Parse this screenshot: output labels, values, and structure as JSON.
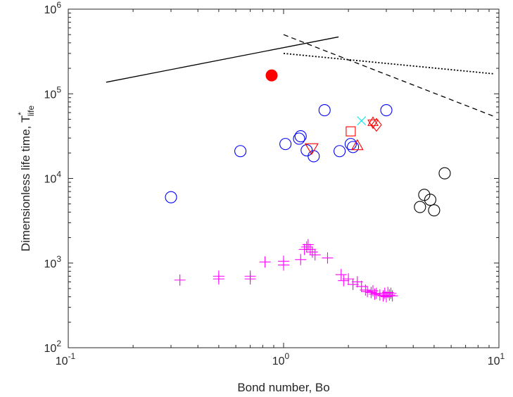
{
  "chart_data": {
    "type": "scatter",
    "title": "",
    "xlabel": "Bond number, Bo",
    "ylabel_main": "Dimensionless life time, T",
    "ylabel_sup": "*",
    "ylabel_sub": "life",
    "xscale": "log",
    "yscale": "log",
    "xlim": [
      0.1,
      10
    ],
    "ylim": [
      100,
      1000000
    ],
    "grid": false,
    "legend": "none",
    "x_ticks": [
      {
        "base": "10",
        "exp": "-1",
        "value": 0.1
      },
      {
        "base": "10",
        "exp": "0",
        "value": 1
      },
      {
        "base": "10",
        "exp": "1",
        "value": 10
      }
    ],
    "y_ticks": [
      {
        "base": "10",
        "exp": "2",
        "value": 100
      },
      {
        "base": "10",
        "exp": "3",
        "value": 1000
      },
      {
        "base": "10",
        "exp": "4",
        "value": 10000
      },
      {
        "base": "10",
        "exp": "5",
        "value": 100000
      },
      {
        "base": "10",
        "exp": "6",
        "value": 1000000
      }
    ],
    "lines": [
      {
        "style": "solid",
        "color": "#000000",
        "x": [
          0.15,
          1.8
        ],
        "y": [
          137000,
          470000
        ]
      },
      {
        "style": "dashed",
        "color": "#000000",
        "x": [
          1.0,
          9.5
        ],
        "y": [
          500000,
          54000
        ]
      },
      {
        "style": "dotted",
        "color": "#000000",
        "x": [
          1.0,
          9.5
        ],
        "y": [
          300000,
          172000
        ]
      }
    ],
    "series": [
      {
        "marker": "filled-circle",
        "color": "#ff0000",
        "x": [
          0.88
        ],
        "y": [
          165000
        ]
      },
      {
        "marker": "circle",
        "color": "#0000ff",
        "x": [
          0.3,
          0.63,
          1.02,
          1.18,
          1.2,
          1.28,
          1.38,
          1.55,
          1.82,
          2.05,
          2.1,
          3.0
        ],
        "y": [
          6000,
          21000,
          25500,
          29500,
          31500,
          21500,
          18300,
          64000,
          21000,
          25500,
          23500,
          64000
        ]
      },
      {
        "marker": "circle",
        "color": "#000000",
        "x": [
          4.3,
          4.5,
          4.8,
          5.0,
          5.6
        ],
        "y": [
          4600,
          6400,
          5600,
          4200,
          11500
        ]
      },
      {
        "marker": "square",
        "color": "#ff0000",
        "x": [
          2.05
        ],
        "y": [
          36000
        ]
      },
      {
        "marker": "triangle-up",
        "color": "#ff0000",
        "x": [
          2.2
        ],
        "y": [
          24500
        ]
      },
      {
        "marker": "triangle-down",
        "color": "#ff0000",
        "x": [
          1.35
        ],
        "y": [
          22500
        ]
      },
      {
        "marker": "hexagram",
        "color": "#ff0000",
        "x": [
          2.6
        ],
        "y": [
          45500
        ]
      },
      {
        "marker": "diamond",
        "color": "#ff0000",
        "x": [
          2.7
        ],
        "y": [
          43000
        ]
      },
      {
        "marker": "x",
        "color": "#00e5e5",
        "x": [
          2.3
        ],
        "y": [
          48000
        ]
      },
      {
        "marker": "plus",
        "color": "#ff00ff",
        "x": [
          0.33,
          0.5,
          0.5,
          0.7,
          0.7,
          0.82,
          1.0,
          1.0,
          1.2,
          1.25,
          1.28,
          1.3,
          1.33,
          1.36,
          1.4,
          1.6,
          1.85,
          1.9,
          2.0,
          2.1,
          2.2,
          2.3,
          2.4,
          2.45,
          2.55,
          2.6,
          2.65,
          2.7,
          2.8,
          2.9,
          2.95,
          3.0,
          3.05,
          3.1,
          3.15,
          3.2
        ],
        "y": [
          630,
          650,
          700,
          650,
          700,
          1030,
          950,
          1050,
          1100,
          1450,
          1550,
          1650,
          1450,
          1350,
          1250,
          1150,
          730,
          620,
          650,
          560,
          600,
          530,
          480,
          460,
          450,
          470,
          430,
          440,
          420,
          410,
          440,
          400,
          450,
          420,
          440,
          410
        ]
      }
    ]
  }
}
